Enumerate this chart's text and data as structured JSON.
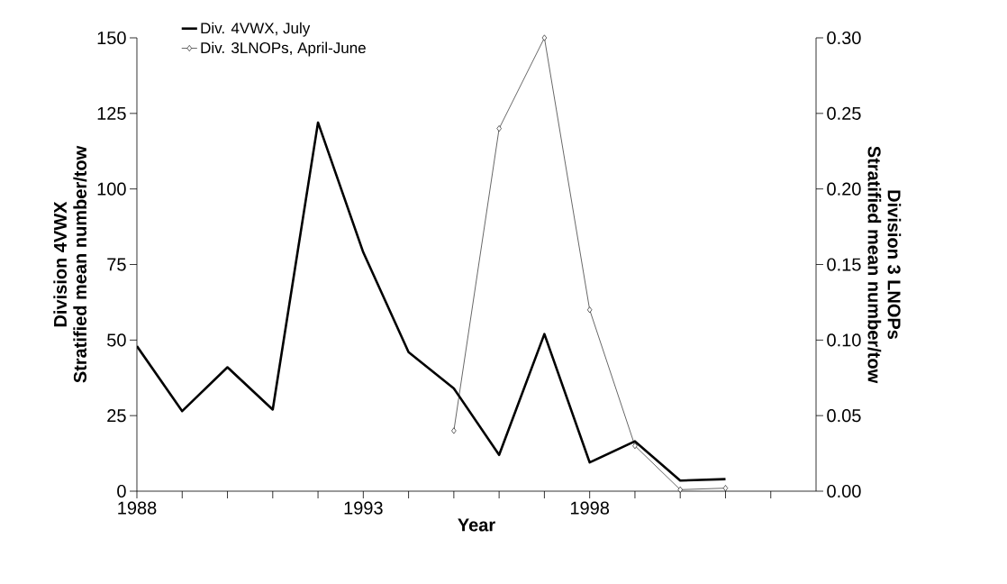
{
  "chart_data": {
    "type": "line",
    "xlabel": "Year",
    "ylabel": "Division 4VWX\nStratified mean number/tow",
    "y2label": "Division 3 LNOPs\nStratified mean number/tow",
    "x": [
      1988,
      1989,
      1990,
      1991,
      1992,
      1993,
      1994,
      1995,
      1996,
      1997,
      1998,
      1999,
      2000,
      2001
    ],
    "series": [
      {
        "name": "Div. 4VWX, July",
        "color": "#000000",
        "marker": "none",
        "values": [
          48,
          26.5,
          41,
          27,
          122,
          79,
          46,
          34,
          12,
          52,
          9.5,
          16.5,
          3.5,
          4
        ]
      },
      {
        "name": "Div. 3LNOPs, April-June",
        "color": "#000000",
        "marker": "diamond",
        "axis": "y2",
        "values": [
          null,
          null,
          null,
          null,
          null,
          null,
          null,
          0.04,
          0.24,
          0.3,
          0.12,
          0.03,
          0.001,
          0.002
        ]
      }
    ],
    "xlim": [
      1988,
      2003
    ],
    "xticks": [
      1988,
      {
        "value": 1989,
        "label": null
      },
      {
        "value": 1990,
        "label": null
      },
      {
        "value": 1991,
        "label": null
      },
      {
        "value": 1992,
        "label": null
      },
      1993,
      {
        "value": 1994,
        "label": null
      },
      {
        "value": 1995,
        "label": null
      },
      {
        "value": 1996,
        "label": null
      },
      {
        "value": 1997,
        "label": null
      },
      1998,
      {
        "value": 1999,
        "label": null
      },
      {
        "value": 2000,
        "label": null
      },
      {
        "value": 2001,
        "label": null
      },
      {
        "value": 2002,
        "label": null
      }
    ],
    "ylim": [
      0,
      150
    ],
    "yticks": [
      0,
      25,
      50,
      75,
      100,
      125,
      150
    ],
    "y2lim": [
      0,
      0.3
    ],
    "y2ticks": [
      {
        "value": 0,
        "label": "0.00"
      },
      {
        "value": 0.05,
        "label": "0.05"
      },
      {
        "value": 0.1,
        "label": "0.10"
      },
      {
        "value": 0.15,
        "label": "0.15"
      },
      {
        "value": 0.2,
        "label": "0.20"
      },
      {
        "value": 0.25,
        "label": "0.25"
      },
      {
        "value": 0.3,
        "label": "0.30"
      }
    ],
    "grid": false,
    "legend": "top left"
  }
}
